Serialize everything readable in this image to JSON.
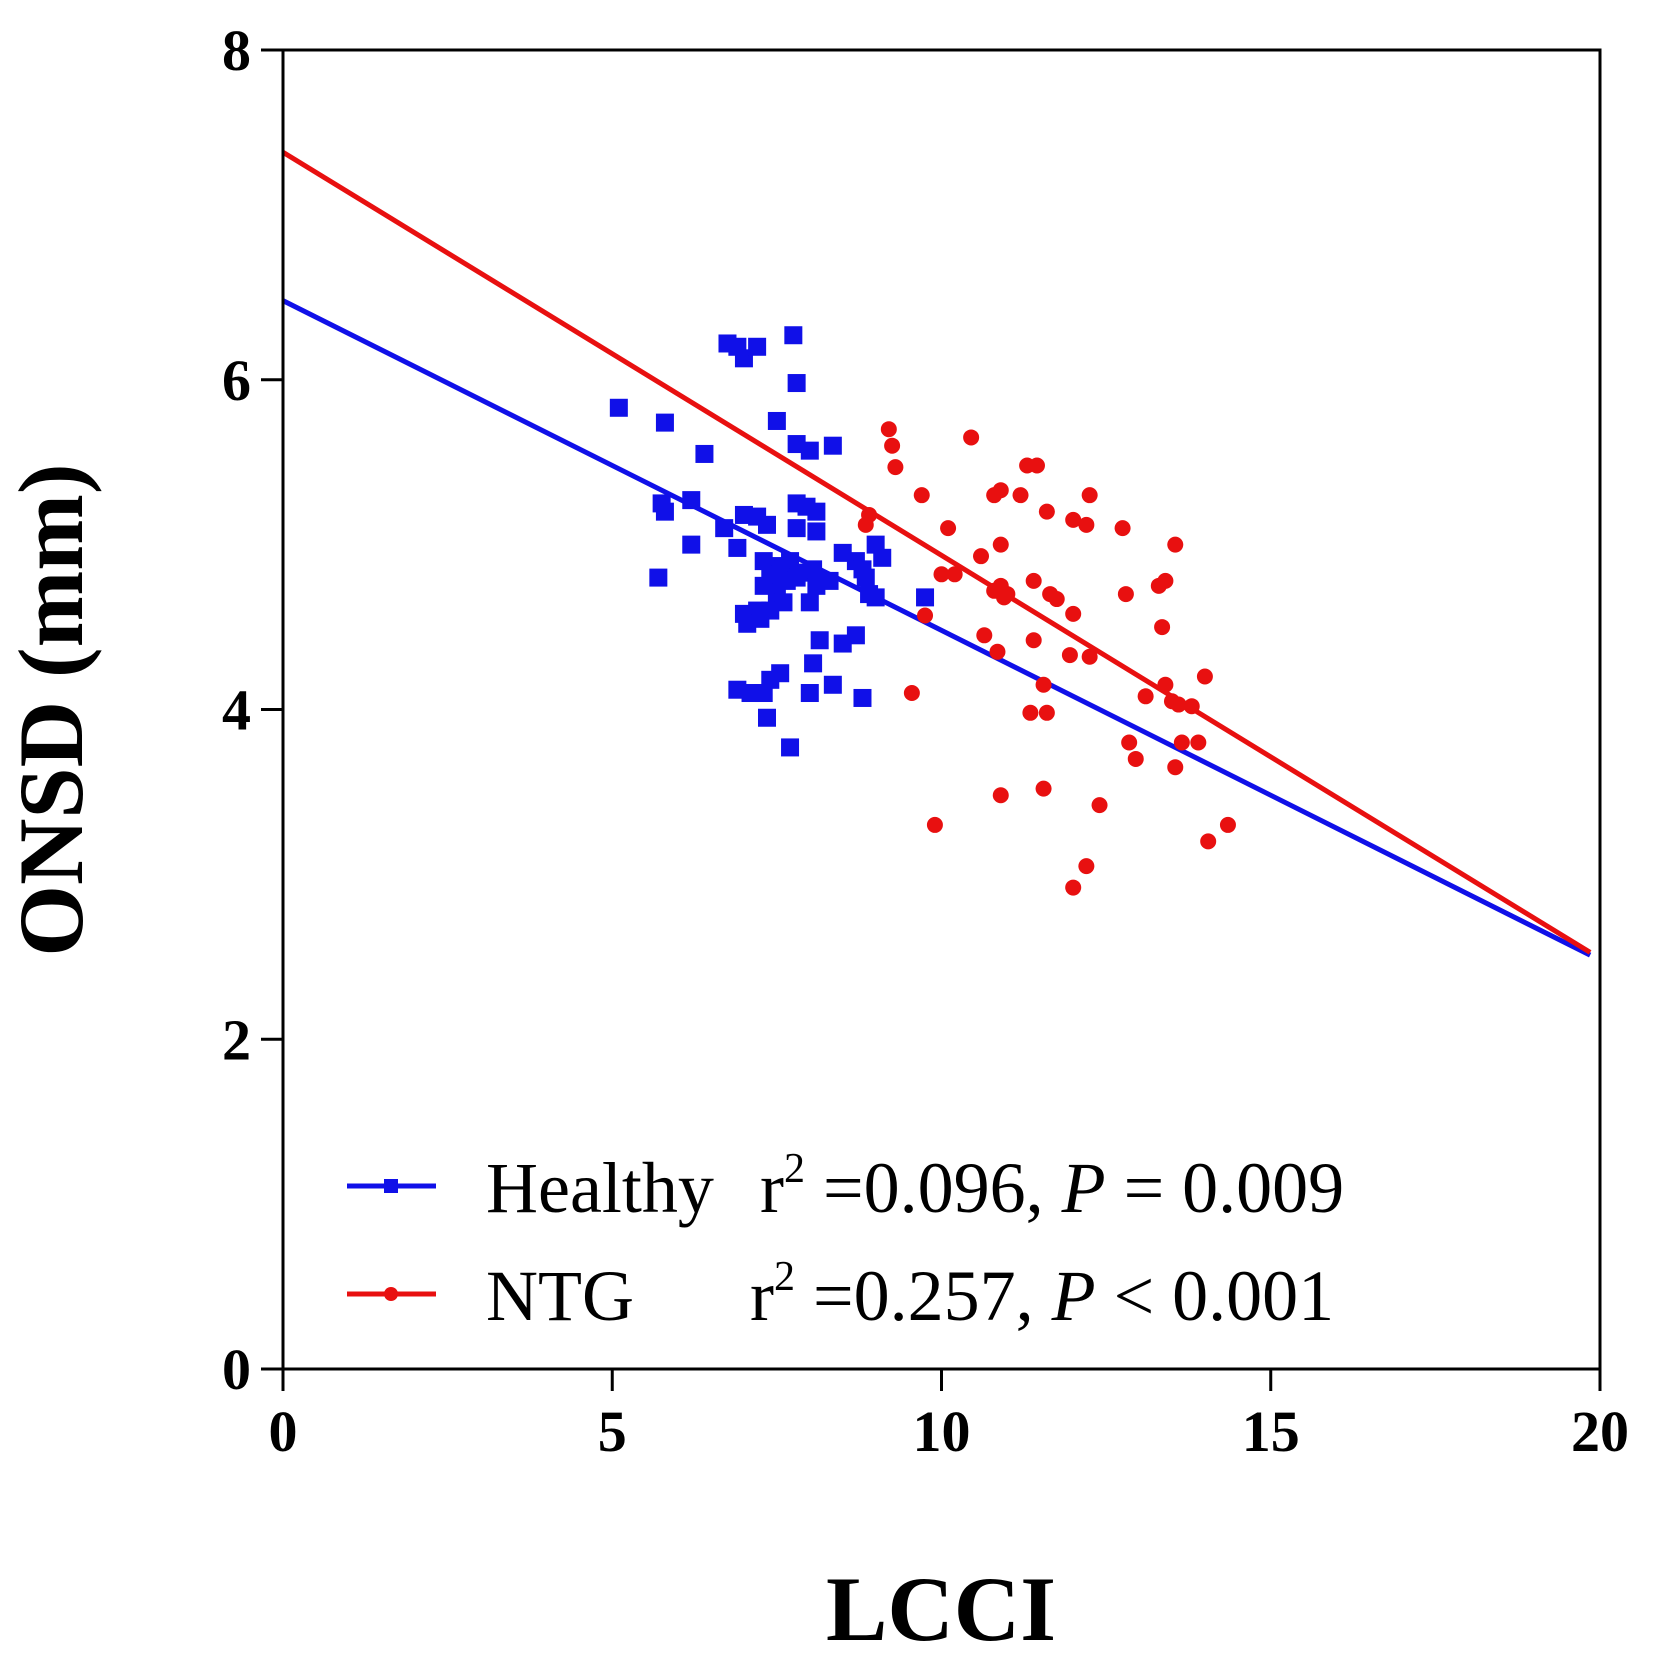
{
  "chart_data": {
    "type": "scatter",
    "xlabel": "LCCI",
    "ylabel": "ONSD (mm)",
    "xlim": [
      0,
      20
    ],
    "ylim": [
      0,
      8
    ],
    "xticks": [
      0,
      5,
      10,
      15,
      20
    ],
    "yticks": [
      0,
      2,
      4,
      6,
      8
    ],
    "xtick_labels": [
      "0",
      "5",
      "10",
      "15",
      "20"
    ],
    "ytick_labels": [
      "0",
      "2",
      "4",
      "6",
      "8"
    ],
    "grid": false,
    "legend_position": "bottom-left",
    "series": [
      {
        "name": "Healthy",
        "color": "#1010e8",
        "marker": "square",
        "stats": {
          "r2_prefix": "r",
          "r2_sup": "2",
          "r2_value": " =0.096, ",
          "p_label": "P",
          "p_value": " = 0.009"
        },
        "fit": {
          "intercept": 6.48,
          "slope": -0.2
        },
        "points": [
          [
            5.1,
            5.83
          ],
          [
            5.8,
            5.74
          ],
          [
            5.75,
            5.25
          ],
          [
            5.8,
            5.2
          ],
          [
            5.7,
            4.8
          ],
          [
            6.2,
            5.27
          ],
          [
            6.2,
            5.0
          ],
          [
            6.4,
            5.55
          ],
          [
            6.75,
            6.22
          ],
          [
            6.9,
            6.2
          ],
          [
            7.0,
            6.13
          ],
          [
            7.2,
            6.2
          ],
          [
            7.75,
            6.27
          ],
          [
            7.8,
            5.98
          ],
          [
            7.5,
            5.75
          ],
          [
            7.8,
            5.61
          ],
          [
            8.0,
            5.57
          ],
          [
            8.35,
            5.6
          ],
          [
            7.8,
            5.25
          ],
          [
            7.95,
            5.23
          ],
          [
            8.1,
            5.2
          ],
          [
            7.0,
            5.18
          ],
          [
            7.2,
            5.17
          ],
          [
            7.35,
            5.12
          ],
          [
            7.8,
            5.1
          ],
          [
            8.1,
            5.08
          ],
          [
            6.7,
            5.1
          ],
          [
            6.9,
            4.98
          ],
          [
            7.3,
            4.9
          ],
          [
            7.5,
            4.87
          ],
          [
            7.6,
            4.85
          ],
          [
            7.7,
            4.9
          ],
          [
            7.4,
            4.8
          ],
          [
            7.55,
            4.82
          ],
          [
            7.65,
            4.78
          ],
          [
            7.8,
            4.8
          ],
          [
            7.9,
            4.83
          ],
          [
            8.05,
            4.85
          ],
          [
            8.5,
            4.95
          ],
          [
            8.7,
            4.9
          ],
          [
            9.0,
            5.0
          ],
          [
            9.1,
            4.92
          ],
          [
            8.8,
            4.85
          ],
          [
            8.85,
            4.8
          ],
          [
            8.3,
            4.78
          ],
          [
            8.1,
            4.75
          ],
          [
            7.3,
            4.75
          ],
          [
            7.5,
            4.7
          ],
          [
            7.6,
            4.65
          ],
          [
            7.4,
            4.6
          ],
          [
            7.2,
            4.6
          ],
          [
            7.0,
            4.58
          ],
          [
            7.05,
            4.52
          ],
          [
            7.25,
            4.55
          ],
          [
            8.0,
            4.65
          ],
          [
            8.9,
            4.7
          ],
          [
            9.0,
            4.68
          ],
          [
            9.75,
            4.68
          ],
          [
            8.15,
            4.42
          ],
          [
            8.5,
            4.4
          ],
          [
            8.7,
            4.45
          ],
          [
            8.05,
            4.28
          ],
          [
            7.55,
            4.22
          ],
          [
            7.4,
            4.18
          ],
          [
            6.9,
            4.12
          ],
          [
            7.1,
            4.1
          ],
          [
            7.3,
            4.1
          ],
          [
            8.0,
            4.1
          ],
          [
            8.35,
            4.15
          ],
          [
            8.8,
            4.07
          ],
          [
            7.35,
            3.95
          ],
          [
            7.7,
            3.77
          ]
        ]
      },
      {
        "name": "NTG",
        "color": "#e81010",
        "marker": "circle",
        "stats": {
          "r2_prefix": "r",
          "r2_sup": "2",
          "r2_value": " =0.257, ",
          "p_label": "P",
          "p_value": " < 0.001"
        },
        "fit": {
          "intercept": 7.38,
          "slope": -0.2445
        },
        "points": [
          [
            9.2,
            5.7
          ],
          [
            9.25,
            5.6
          ],
          [
            9.3,
            5.47
          ],
          [
            10.45,
            5.65
          ],
          [
            11.3,
            5.48
          ],
          [
            11.45,
            5.48
          ],
          [
            9.7,
            5.3
          ],
          [
            10.8,
            5.3
          ],
          [
            10.9,
            5.33
          ],
          [
            11.2,
            5.3
          ],
          [
            12.25,
            5.3
          ],
          [
            11.6,
            5.2
          ],
          [
            12.0,
            5.15
          ],
          [
            12.2,
            5.12
          ],
          [
            12.75,
            5.1
          ],
          [
            8.9,
            5.18
          ],
          [
            8.85,
            5.12
          ],
          [
            10.1,
            5.1
          ],
          [
            13.55,
            5.0
          ],
          [
            10.9,
            5.0
          ],
          [
            10.6,
            4.93
          ],
          [
            10.0,
            4.82
          ],
          [
            10.2,
            4.82
          ],
          [
            11.4,
            4.78
          ],
          [
            13.3,
            4.75
          ],
          [
            13.4,
            4.78
          ],
          [
            10.8,
            4.72
          ],
          [
            10.9,
            4.75
          ],
          [
            11.0,
            4.7
          ],
          [
            10.95,
            4.68
          ],
          [
            11.65,
            4.7
          ],
          [
            11.75,
            4.67
          ],
          [
            12.8,
            4.7
          ],
          [
            12.0,
            4.58
          ],
          [
            9.75,
            4.57
          ],
          [
            10.65,
            4.45
          ],
          [
            11.4,
            4.42
          ],
          [
            13.35,
            4.5
          ],
          [
            11.95,
            4.33
          ],
          [
            12.25,
            4.32
          ],
          [
            10.85,
            4.35
          ],
          [
            14.0,
            4.2
          ],
          [
            11.55,
            4.15
          ],
          [
            13.4,
            4.15
          ],
          [
            13.1,
            4.08
          ],
          [
            13.5,
            4.05
          ],
          [
            13.6,
            4.03
          ],
          [
            13.8,
            4.02
          ],
          [
            9.55,
            4.1
          ],
          [
            11.35,
            3.98
          ],
          [
            11.6,
            3.98
          ],
          [
            12.85,
            3.8
          ],
          [
            13.65,
            3.8
          ],
          [
            13.9,
            3.8
          ],
          [
            12.95,
            3.7
          ],
          [
            13.55,
            3.65
          ],
          [
            11.55,
            3.52
          ],
          [
            10.9,
            3.48
          ],
          [
            12.4,
            3.42
          ],
          [
            9.9,
            3.3
          ],
          [
            14.35,
            3.3
          ],
          [
            14.05,
            3.2
          ],
          [
            12.2,
            3.05
          ],
          [
            12.0,
            2.92
          ]
        ]
      }
    ]
  }
}
